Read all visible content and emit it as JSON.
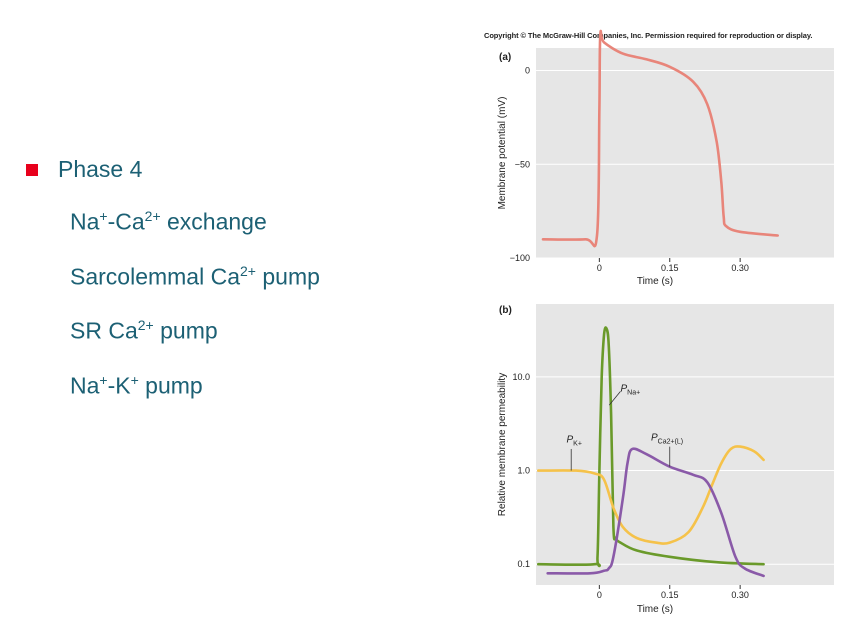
{
  "bullets": {
    "main": "Phase 4",
    "items": [
      {
        "pre": "Na",
        "sup1": "+",
        "mid": "-Ca",
        "sup2": "2+",
        "post": " exchange"
      },
      {
        "pre": "Sarcolemmal Ca",
        "sup1": "2+",
        "mid": " pump",
        "sup2": "",
        "post": ""
      },
      {
        "pre": "SR Ca",
        "sup1": "2+",
        "mid": " pump",
        "sup2": "",
        "post": ""
      },
      {
        "pre": "Na",
        "sup1": "+",
        "mid": "-K",
        "sup2": "+",
        "post": " pump"
      }
    ]
  },
  "figure": {
    "copyright": "Copyright © The McGraw-Hill Companies, Inc. Permission required for reproduction or display."
  },
  "colors": {
    "bullet": "#e8001c",
    "text": "#1c6074",
    "panel_bg": "#e6e6e6",
    "membrane": "#e8857a",
    "pNa": "#6a9a2a",
    "pCa": "#8a5aa8",
    "pK": "#f5c24a"
  },
  "chart_data": [
    {
      "type": "line",
      "panel": "(a)",
      "xlabel": "Time (s)",
      "ylabel": "Membrane potential (mV)",
      "x_ticks": [
        "0",
        "0.15",
        "0.30"
      ],
      "x_tick_values": [
        0,
        0.15,
        0.3
      ],
      "y_ticks": [
        "0",
        "−50",
        "−100"
      ],
      "y_tick_values": [
        0,
        -50,
        -100
      ],
      "xlim": [
        -0.135,
        0.5
      ],
      "ylim": [
        -100,
        12
      ],
      "series": [
        {
          "color_key": "membrane",
          "x": [
            -0.12,
            -0.03,
            -0.005,
            0,
            0.002,
            0.01,
            0.05,
            0.1,
            0.15,
            0.2,
            0.23,
            0.25,
            0.26,
            0.265,
            0.27,
            0.3,
            0.38
          ],
          "y": [
            -90,
            -90,
            -88,
            -20,
            19,
            15,
            9,
            6,
            2,
            -6,
            -18,
            -38,
            -60,
            -78,
            -83,
            -86,
            -88
          ]
        }
      ]
    },
    {
      "type": "line",
      "panel": "(b)",
      "xlabel": "Time (s)",
      "ylabel": "Relative membrane permeability",
      "x_ticks": [
        "0",
        "0.15",
        "0.30"
      ],
      "x_tick_values": [
        0,
        0.15,
        0.3
      ],
      "y_ticks": [
        "10.0",
        "1.0",
        "0.1"
      ],
      "y_tick_values": [
        10,
        1,
        0.1
      ],
      "y_scale": "log",
      "xlim": [
        -0.135,
        0.5
      ],
      "ylim": [
        0.06,
        60
      ],
      "series": [
        {
          "label": "P",
          "label_sub": "Na+",
          "color_key": "pNa",
          "x": [
            -0.13,
            -0.01,
            -0.004,
            0.0,
            0.005,
            0.01,
            0.015,
            0.02,
            0.025,
            0.03,
            0.035,
            0.045,
            0.08,
            0.15,
            0.25,
            0.35
          ],
          "y": [
            0.1,
            0.1,
            0.12,
            1.0,
            10,
            28,
            33,
            22,
            4,
            0.25,
            0.19,
            0.17,
            0.14,
            0.12,
            0.105,
            0.1
          ]
        },
        {
          "label": "P",
          "label_sub": "K+",
          "color_key": "pK",
          "x": [
            -0.13,
            -0.05,
            -0.01,
            0.01,
            0.03,
            0.05,
            0.08,
            0.12,
            0.15,
            0.19,
            0.22,
            0.24,
            0.26,
            0.28,
            0.3,
            0.33,
            0.35
          ],
          "y": [
            1.0,
            1.0,
            0.93,
            0.8,
            0.4,
            0.25,
            0.19,
            0.17,
            0.17,
            0.22,
            0.4,
            0.7,
            1.2,
            1.7,
            1.8,
            1.6,
            1.3
          ]
        },
        {
          "label": "P",
          "label_sub": "Ca2+(L)",
          "color_key": "pCa",
          "x": [
            -0.11,
            -0.02,
            0.01,
            0.02,
            0.03,
            0.05,
            0.06,
            0.07,
            0.1,
            0.15,
            0.2,
            0.23,
            0.26,
            0.29,
            0.31,
            0.35
          ],
          "y": [
            0.08,
            0.08,
            0.085,
            0.09,
            0.12,
            0.5,
            1.2,
            1.7,
            1.5,
            1.1,
            0.9,
            0.75,
            0.35,
            0.12,
            0.09,
            0.075
          ]
        }
      ]
    }
  ]
}
